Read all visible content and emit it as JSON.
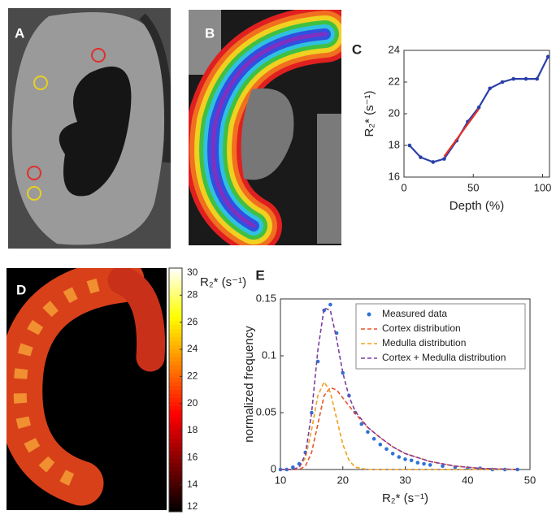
{
  "panel_labels": [
    "A",
    "B",
    "D"
  ],
  "chart_data": [
    {
      "type": "line",
      "panel": "C",
      "xlabel": "Depth (%)",
      "ylabel": "R₂* (s⁻¹)",
      "xlim": [
        0,
        105
      ],
      "xticks": [
        0,
        50,
        100
      ],
      "ylim": [
        16,
        24
      ],
      "yticks": [
        16,
        18,
        20,
        22,
        24
      ],
      "series": [
        {
          "color": "#2b3fa8",
          "markers": true,
          "x": [
            4,
            12,
            21,
            29,
            38,
            46,
            54,
            62,
            71,
            79,
            88,
            96,
            104
          ],
          "values": [
            18.0,
            17.25,
            16.95,
            17.15,
            18.3,
            19.5,
            20.4,
            21.6,
            22.0,
            22.2,
            22.2,
            22.2,
            23.6
          ]
        },
        {
          "color": "#e8302a",
          "markers": false,
          "x": [
            29,
            54
          ],
          "values": [
            17.3,
            20.3
          ]
        }
      ]
    },
    {
      "type": "colorbar",
      "label": "R₂* (s⁻¹)",
      "colormap": "hot",
      "ylim": [
        12,
        30
      ],
      "yticks": [
        12,
        14,
        16,
        18,
        20,
        22,
        24,
        26,
        28,
        30
      ]
    },
    {
      "type": "line",
      "panel": "E",
      "xlabel": "R₂* (s⁻¹)",
      "ylabel": "normalized frequency",
      "xlim": [
        10,
        50
      ],
      "xticks": [
        10,
        20,
        30,
        40,
        50
      ],
      "ylim": [
        0,
        0.15
      ],
      "yticks": [
        0,
        0.05,
        0.1,
        0.15
      ],
      "legend": "top-right",
      "series": [
        {
          "name": "Measured data",
          "color": "#2f72d6",
          "markers": true,
          "line": false,
          "x": [
            10,
            11,
            12,
            13,
            14,
            15,
            16,
            17,
            18,
            19,
            20,
            21,
            22,
            23,
            24,
            25,
            26,
            27,
            28,
            29,
            30,
            31,
            32,
            33,
            34,
            36,
            38,
            40,
            42,
            44,
            46,
            48
          ],
          "values": [
            0,
            0,
            0.002,
            0.005,
            0.015,
            0.05,
            0.095,
            0.14,
            0.145,
            0.12,
            0.085,
            0.065,
            0.05,
            0.04,
            0.033,
            0.027,
            0.022,
            0.018,
            0.014,
            0.011,
            0.009,
            0.008,
            0.006,
            0.005,
            0.004,
            0.003,
            0.002,
            0.001,
            0.001,
            0,
            0,
            0
          ]
        },
        {
          "name": "Cortex distribution",
          "color": "#e8552a",
          "dashed": true,
          "x": [
            10,
            12,
            13,
            14,
            15,
            16,
            17,
            18,
            19,
            20,
            21,
            22,
            24,
            26,
            28,
            30,
            34,
            38,
            42,
            48
          ],
          "values": [
            0,
            0,
            0,
            0.003,
            0.015,
            0.04,
            0.065,
            0.072,
            0.07,
            0.063,
            0.056,
            0.049,
            0.037,
            0.028,
            0.02,
            0.014,
            0.007,
            0.003,
            0.001,
            0
          ]
        },
        {
          "name": "Medulla distribution",
          "color": "#f0a020",
          "dashed": true,
          "x": [
            10,
            12,
            13,
            14,
            15,
            16,
            17,
            18,
            19,
            20,
            21,
            22,
            24,
            26,
            28,
            30,
            34,
            38,
            42,
            48
          ],
          "values": [
            0,
            0,
            0.002,
            0.01,
            0.035,
            0.065,
            0.077,
            0.068,
            0.045,
            0.022,
            0.008,
            0.002,
            0,
            0,
            0,
            0,
            0,
            0,
            0,
            0
          ]
        },
        {
          "name": "Cortex + Medulla distribution",
          "color": "#7b3fa0",
          "dashed": true,
          "x": [
            10,
            12,
            13,
            14,
            15,
            16,
            17,
            18,
            19,
            20,
            21,
            22,
            24,
            26,
            28,
            30,
            34,
            38,
            42,
            48
          ],
          "values": [
            0,
            0,
            0.002,
            0.013,
            0.05,
            0.105,
            0.142,
            0.14,
            0.115,
            0.085,
            0.064,
            0.051,
            0.037,
            0.028,
            0.02,
            0.014,
            0.007,
            0.003,
            0.001,
            0
          ]
        }
      ]
    }
  ]
}
